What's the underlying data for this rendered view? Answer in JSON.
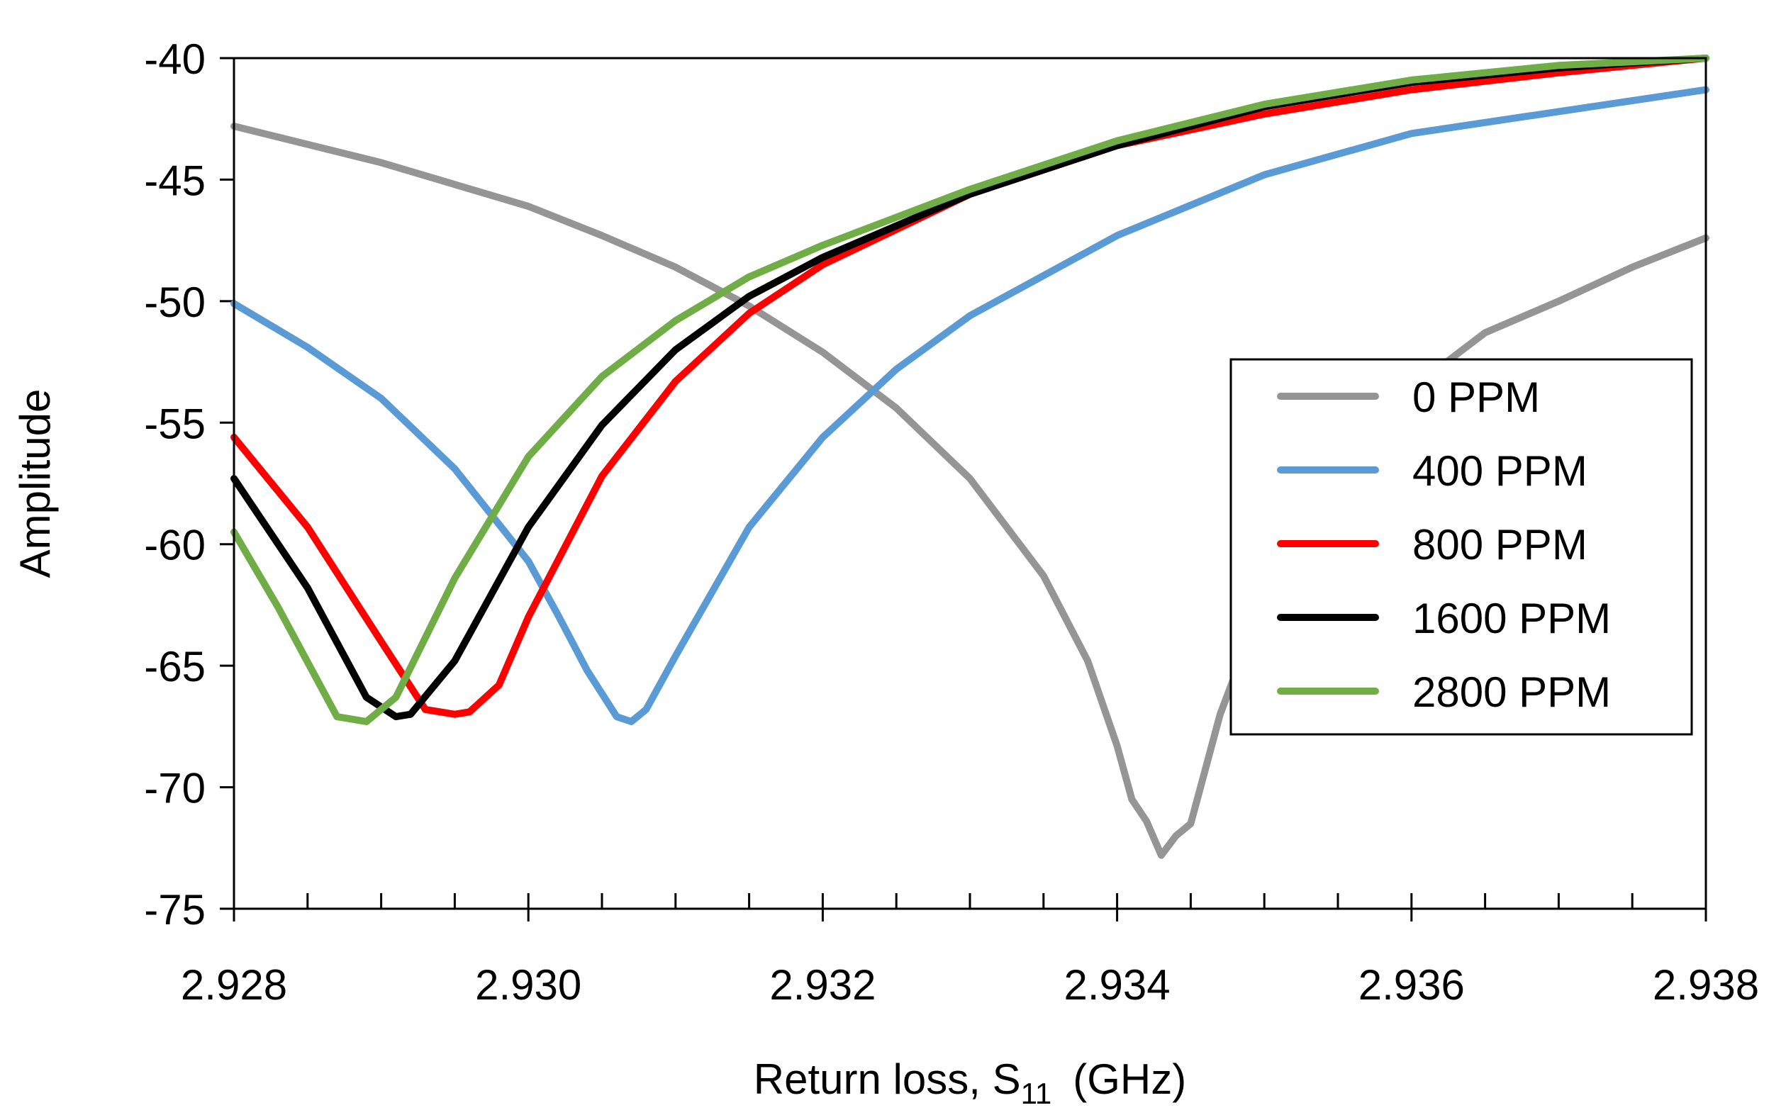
{
  "chart_data": {
    "type": "line",
    "title": "",
    "xlabel": "Return loss, S",
    "xlabel_sub": "11",
    "xlabel_suffix": "(GHz)",
    "ylabel": "Amplitude",
    "xlim": [
      2.928,
      2.938
    ],
    "ylim": [
      -75,
      -40
    ],
    "xticks": [
      2.928,
      2.93,
      2.932,
      2.934,
      2.936,
      2.938
    ],
    "xtick_labels": [
      "2.928",
      "2.930",
      "2.932",
      "2.934",
      "2.936",
      "2.938"
    ],
    "xminor_step": 0.0005,
    "yticks": [
      -40,
      -45,
      -50,
      -55,
      -60,
      -65,
      -70,
      -75
    ],
    "ytick_labels": [
      "-40",
      "-45",
      "-50",
      "-55",
      "-60",
      "-65",
      "-70",
      "-75"
    ],
    "grid": false,
    "legend_position": "center-right",
    "series": [
      {
        "name": "0 PPM",
        "color": "#959595",
        "x": [
          2.928,
          2.929,
          2.93,
          2.9305,
          2.931,
          2.9315,
          2.932,
          2.9325,
          2.933,
          2.9335,
          2.9338,
          2.934,
          2.9341,
          2.9342,
          2.9343,
          2.9344,
          2.9345,
          2.9347,
          2.935,
          2.9355,
          2.936,
          2.9365,
          2.937,
          2.9375,
          2.938
        ],
        "y": [
          -42.8,
          -44.3,
          -46.1,
          -47.3,
          -48.6,
          -50.2,
          -52.1,
          -54.4,
          -57.3,
          -61.3,
          -64.8,
          -68.3,
          -70.5,
          -71.4,
          -72.8,
          -72.0,
          -71.5,
          -67.0,
          -62.2,
          -57.0,
          -53.6,
          -51.3,
          -50.0,
          -48.6,
          -47.4
        ]
      },
      {
        "name": "400 PPM",
        "color": "#5b9bd5",
        "x": [
          2.928,
          2.9285,
          2.929,
          2.9295,
          2.93,
          2.9302,
          2.9304,
          2.9306,
          2.9307,
          2.9308,
          2.931,
          2.9315,
          2.932,
          2.9325,
          2.933,
          2.934,
          2.935,
          2.936,
          2.937,
          2.938
        ],
        "y": [
          -50.1,
          -51.9,
          -54.0,
          -56.9,
          -60.7,
          -62.9,
          -65.2,
          -67.1,
          -67.3,
          -66.8,
          -64.6,
          -59.3,
          -55.6,
          -52.8,
          -50.6,
          -47.3,
          -44.8,
          -43.1,
          -42.2,
          -41.3
        ]
      },
      {
        "name": "800 PPM",
        "color": "#ff0000",
        "x": [
          2.928,
          2.9285,
          2.929,
          2.9293,
          2.9295,
          2.9296,
          2.9298,
          2.93,
          2.9305,
          2.931,
          2.9315,
          2.932,
          2.933,
          2.934,
          2.935,
          2.936,
          2.937,
          2.938
        ],
        "y": [
          -55.6,
          -59.3,
          -64.0,
          -66.8,
          -67.0,
          -66.9,
          -65.8,
          -63.0,
          -57.2,
          -53.3,
          -50.5,
          -48.5,
          -45.6,
          -43.6,
          -42.3,
          -41.3,
          -40.6,
          -40.0
        ]
      },
      {
        "name": "1600 PPM",
        "color": "#000000",
        "x": [
          2.928,
          2.9285,
          2.9289,
          2.9291,
          2.9292,
          2.9295,
          2.93,
          2.9305,
          2.931,
          2.9315,
          2.932,
          2.933,
          2.934,
          2.935,
          2.936,
          2.937,
          2.938
        ],
        "y": [
          -57.3,
          -61.8,
          -66.3,
          -67.1,
          -67.0,
          -64.8,
          -59.3,
          -55.1,
          -52.0,
          -49.8,
          -48.2,
          -45.6,
          -43.6,
          -42.0,
          -41.0,
          -40.4,
          -40.0
        ]
      },
      {
        "name": "2800 PPM",
        "color": "#70ad47",
        "x": [
          2.928,
          2.9283,
          2.9287,
          2.9289,
          2.9291,
          2.9295,
          2.93,
          2.9305,
          2.931,
          2.9315,
          2.932,
          2.933,
          2.934,
          2.935,
          2.936,
          2.937,
          2.938
        ],
        "y": [
          -59.5,
          -62.6,
          -67.1,
          -67.3,
          -66.3,
          -61.4,
          -56.4,
          -53.1,
          -50.8,
          -49.0,
          -47.7,
          -45.4,
          -43.4,
          -41.9,
          -40.9,
          -40.3,
          -40.0
        ]
      }
    ]
  }
}
